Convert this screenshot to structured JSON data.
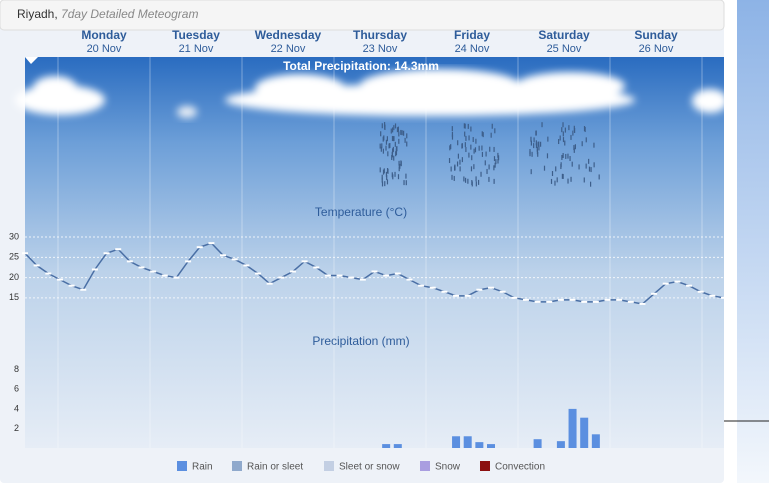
{
  "header": {
    "city": "Riyadh,",
    "title": "7day Detailed Meteogram"
  },
  "days": [
    {
      "day": "Monday",
      "date": "20 Nov"
    },
    {
      "day": "Tuesday",
      "date": "21 Nov"
    },
    {
      "day": "Wednesday",
      "date": "22 Nov"
    },
    {
      "day": "Thursday",
      "date": "23 Nov"
    },
    {
      "day": "Friday",
      "date": "24 Nov"
    },
    {
      "day": "Saturday",
      "date": "25 Nov"
    },
    {
      "day": "Sunday",
      "date": "26 Nov"
    }
  ],
  "total_precipitation": "Total Precipitation: 14.3mm",
  "chart_data": [
    {
      "type": "line",
      "title": "Temperature (°C)",
      "color": "#4a6fa5",
      "ylim": [
        12,
        31
      ],
      "yticks": [
        15,
        20,
        25,
        30
      ],
      "grid": true,
      "values": [
        26,
        23,
        21,
        19.5,
        18,
        17,
        22,
        26,
        27,
        24,
        22.5,
        21.5,
        20.5,
        20,
        24,
        27.5,
        28.5,
        25.5,
        24.5,
        23,
        21,
        18.5,
        20,
        21.5,
        24,
        22.5,
        20.5,
        20.5,
        20,
        19.5,
        21.5,
        20.5,
        21,
        19.5,
        18,
        17.5,
        16.5,
        15.5,
        15.5,
        17,
        17.5,
        16.5,
        15,
        14.5,
        14,
        14,
        14.5,
        14.5,
        14,
        14,
        14.5,
        14.5,
        14,
        13.5,
        16,
        18.5,
        19,
        18,
        16.5,
        15.5,
        15
      ]
    },
    {
      "type": "bar",
      "title": "Precipitation (mm)",
      "ylim": [
        0,
        9
      ],
      "yticks": [
        2,
        4,
        6,
        8
      ],
      "grid": false,
      "series": [
        {
          "name": "Rain",
          "color": "#5b8fe0",
          "values": [
            0,
            0,
            0,
            0,
            0,
            0,
            0,
            0,
            0,
            0,
            0,
            0,
            0,
            0,
            0,
            0,
            0,
            0,
            0,
            0,
            0,
            0,
            0,
            0,
            0,
            0,
            0,
            0,
            0,
            0,
            0,
            0.4,
            0.4,
            0,
            0,
            0,
            0,
            1.2,
            1.2,
            0.6,
            0.4,
            0,
            0,
            0,
            0.9,
            0,
            0.7,
            4,
            3.1,
            1.4,
            0,
            0,
            0,
            0,
            0,
            0,
            0,
            0,
            0,
            0,
            0
          ]
        }
      ],
      "legend": [
        {
          "name": "Rain",
          "color": "#5b8fe0"
        },
        {
          "name": "Rain or sleet",
          "color": "#8fa9cc"
        },
        {
          "name": "Sleet or snow",
          "color": "#c3cfe3"
        },
        {
          "name": "Snow",
          "color": "#a99ee0"
        },
        {
          "name": "Convection",
          "color": "#8b1010"
        }
      ]
    }
  ]
}
